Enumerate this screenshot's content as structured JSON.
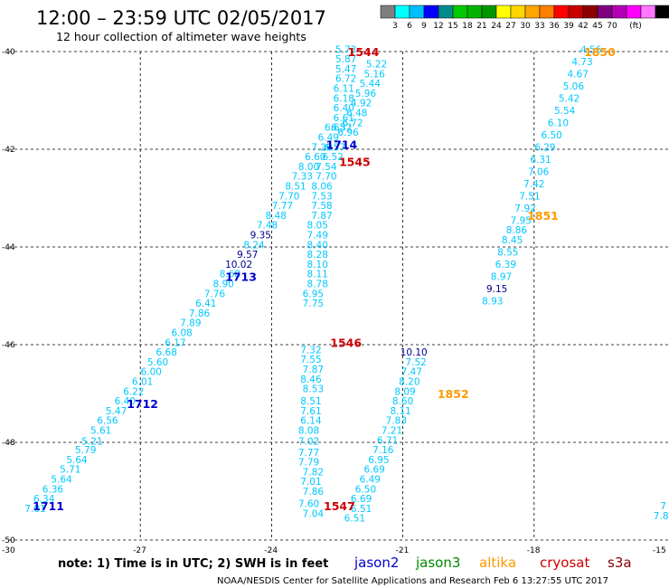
{
  "header": {
    "title": "12:00 – 23:59 UTC 02/05/2017",
    "subtitle": "12 hour collection of altimeter wave heights"
  },
  "legend_scale": {
    "colors": [
      "#7f7f7f",
      "#00ffff",
      "#00bfff",
      "#0000ff",
      "#008b8b",
      "#00c800",
      "#00b400",
      "#009600",
      "#ffff00",
      "#ffd700",
      "#ffa500",
      "#ff7f00",
      "#ff0000",
      "#c80000",
      "#8b0000",
      "#800080",
      "#b400b4",
      "#ff00ff",
      "#ff77ff",
      "#000000"
    ],
    "labels": [
      "3",
      "6",
      "9",
      "12",
      "15",
      "18",
      "21",
      "24",
      "27",
      "30",
      "33",
      "36",
      "39",
      "42",
      "45",
      "70",
      "(ft)"
    ]
  },
  "footer": {
    "note": "note:  1) Time is in UTC;  2) SWH is in feet",
    "satellites": [
      {
        "name": "jason2",
        "color": "#0000cc"
      },
      {
        "name": "jason3",
        "color": "#008800"
      },
      {
        "name": "altika",
        "color": "#ff9900"
      },
      {
        "name": "cryosat",
        "color": "#cc0000"
      },
      {
        "name": "s3a",
        "color": "#880000"
      }
    ],
    "credit": "NOAA/NESDIS Center for Satellite Applications and Research     Feb  6 13:27:55 UTC 2017"
  },
  "chart_data": {
    "type": "scatter",
    "xlim": [
      -30,
      -15
    ],
    "ylim": [
      -50,
      -40
    ],
    "x_ticks": [
      -30,
      -27,
      -24,
      -21,
      -18,
      -15
    ],
    "y_ticks": [
      -40,
      -42,
      -44,
      -46,
      -48,
      -50
    ],
    "x_tick_labels": [
      "-30",
      "-27",
      "-24",
      "-21",
      "-18",
      "-15"
    ],
    "y_tick_labels": [
      "-40",
      "-42",
      "-44",
      "-46",
      "-48",
      "-50"
    ],
    "grid": true,
    "grid_style": "dashed",
    "value_color": "#00c8ff",
    "tracks": [
      {
        "satellite": "jason2",
        "time_label": "1711",
        "time_pos": [
          -29.1,
          -49.3
        ],
        "time_color": "#0000cc",
        "points": [
          [
            "7.01",
            -29.4,
            -49.35
          ],
          [
            "6.34",
            -29.2,
            -49.15
          ],
          [
            "6.36",
            -29.0,
            -48.95
          ],
          [
            "5.64",
            -28.8,
            -48.75
          ],
          [
            "5.71",
            -28.6,
            -48.55
          ],
          [
            "5.64",
            -28.45,
            -48.35
          ],
          [
            "5.79",
            -28.25,
            -48.15
          ],
          [
            "5.21",
            -28.1,
            -47.97
          ],
          [
            "5.61",
            -27.9,
            -47.75
          ],
          [
            "6.56",
            -27.75,
            -47.55
          ],
          [
            "5.47",
            -27.55,
            -47.35
          ],
          [
            "6.40",
            -27.35,
            -47.15
          ],
          [
            "6.22",
            -27.15,
            -46.95
          ],
          [
            "6.01",
            -26.95,
            -46.75
          ],
          [
            "6.00",
            -26.75,
            -46.55
          ],
          [
            "5.60",
            -26.6,
            -46.35
          ],
          [
            "6.68",
            -26.4,
            -46.15
          ],
          [
            "6.17",
            -26.2,
            -45.95
          ],
          [
            "6.08",
            -26.05,
            -45.75
          ],
          [
            "7.89",
            -25.85,
            -45.55
          ],
          [
            "7.86",
            -25.65,
            -45.35
          ],
          [
            "6.41",
            -25.5,
            -45.15
          ],
          [
            "7.76",
            -25.3,
            -44.95
          ],
          [
            "8.90",
            -25.1,
            -44.75
          ],
          [
            "8.68",
            -24.95,
            -44.55
          ],
          [
            "10.02",
            -24.75,
            -44.35
          ],
          [
            "9.57",
            -24.55,
            -44.15
          ],
          [
            "8.24",
            -24.4,
            -43.95
          ],
          [
            "9.35",
            -24.25,
            -43.75
          ],
          [
            "7.48",
            -24.1,
            -43.55
          ],
          [
            "8.48",
            -23.9,
            -43.35
          ],
          [
            "7.77",
            -23.75,
            -43.15
          ],
          [
            "7.70",
            -23.6,
            -42.95
          ],
          [
            "8.51",
            -23.45,
            -42.75
          ],
          [
            "7.33",
            -23.3,
            -42.55
          ],
          [
            "8.00",
            -23.15,
            -42.35
          ],
          [
            "6.60",
            -23.0,
            -42.15
          ],
          [
            "7.29",
            -22.85,
            -41.95
          ],
          [
            "6.49",
            -22.7,
            -41.75
          ],
          [
            "6.65",
            -22.55,
            -41.55
          ]
        ]
      },
      {
        "satellite": "jason2",
        "time_label": "1712",
        "time_pos": [
          -26.95,
          -47.2
        ],
        "time_color": "#0000cc",
        "points": []
      },
      {
        "satellite": "jason2",
        "time_label": "1713",
        "time_pos": [
          -24.7,
          -44.6
        ],
        "time_color": "#0000cc",
        "points": []
      },
      {
        "satellite": "jason2",
        "time_label": "1714",
        "time_pos": [
          -22.4,
          -41.9
        ],
        "time_color": "#0000cc",
        "points": [
          [
            "5.73",
            -22.3,
            -39.95
          ],
          [
            "5.87",
            -22.3,
            -40.15
          ],
          [
            "5.47",
            -22.3,
            -40.35
          ],
          [
            "6.72",
            -22.3,
            -40.55
          ],
          [
            "6.11",
            -22.35,
            -40.75
          ],
          [
            "6.18",
            -22.35,
            -40.95
          ],
          [
            "6.40",
            -22.35,
            -41.15
          ],
          [
            "6.61",
            -22.35,
            -41.35
          ],
          [
            "6.32",
            -22.4,
            -41.55
          ],
          [
            "6.57",
            -22.55,
            -41.95
          ],
          [
            "6.52",
            -22.6,
            -42.15
          ]
        ]
      },
      {
        "satellite": "cryosat",
        "time_label": "1544",
        "time_pos": [
          -21.9,
          -40.0
        ],
        "time_color": "#cc0000",
        "points": [
          [
            "5.22",
            -21.6,
            -40.25
          ],
          [
            "5.16",
            -21.65,
            -40.45
          ],
          [
            "5.44",
            -21.75,
            -40.65
          ],
          [
            "5.96",
            -21.85,
            -40.85
          ],
          [
            "4.92",
            -21.95,
            -41.05
          ],
          [
            "6.48",
            -22.05,
            -41.25
          ],
          [
            "6.72",
            -22.15,
            -41.45
          ],
          [
            "6.96",
            -22.25,
            -41.65
          ]
        ]
      },
      {
        "satellite": "cryosat",
        "time_label": "1545",
        "time_pos": [
          -22.1,
          -42.25
        ],
        "time_color": "#cc0000",
        "points": [
          [
            "7.54",
            -22.75,
            -42.35
          ],
          [
            "7.70",
            -22.75,
            -42.55
          ],
          [
            "8.06",
            -22.85,
            -42.75
          ],
          [
            "7.53",
            -22.85,
            -42.95
          ],
          [
            "7.58",
            -22.85,
            -43.15
          ],
          [
            "7.87",
            -22.85,
            -43.35
          ],
          [
            "8.05",
            -22.95,
            -43.55
          ],
          [
            "7.49",
            -22.95,
            -43.75
          ],
          [
            "8.40",
            -22.95,
            -43.95
          ],
          [
            "8.28",
            -22.95,
            -44.15
          ],
          [
            "8.10",
            -22.95,
            -44.35
          ],
          [
            "8.11",
            -22.95,
            -44.55
          ],
          [
            "8.78",
            -22.95,
            -44.75
          ],
          [
            "6.95",
            -23.05,
            -44.95
          ],
          [
            "7.75",
            -23.05,
            -45.15
          ]
        ]
      },
      {
        "satellite": "cryosat",
        "time_label": "1546",
        "time_pos": [
          -22.3,
          -45.95
        ],
        "time_color": "#cc0000",
        "points": [
          [
            "7.32",
            -23.1,
            -46.1
          ],
          [
            "7.55",
            -23.1,
            -46.3
          ],
          [
            "7.87",
            -23.05,
            -46.5
          ],
          [
            "8.46",
            -23.1,
            -46.7
          ],
          [
            "8.53",
            -23.05,
            -46.9
          ],
          [
            "8.51",
            -23.1,
            -47.15
          ],
          [
            "7.61",
            -23.1,
            -47.35
          ],
          [
            "6.14",
            -23.1,
            -47.55
          ],
          [
            "8.08",
            -23.15,
            -47.75
          ],
          [
            "7.02",
            -23.15,
            -47.97
          ],
          [
            "7.77",
            -23.15,
            -48.2
          ],
          [
            "7.79",
            -23.15,
            -48.4
          ],
          [
            "7.82",
            -23.05,
            -48.6
          ],
          [
            "7.01",
            -23.1,
            -48.8
          ],
          [
            "7.86",
            -23.05,
            -49.0
          ],
          [
            "7.60",
            -23.15,
            -49.25
          ],
          [
            "7.04",
            -23.05,
            -49.45
          ]
        ]
      },
      {
        "satellite": "cryosat",
        "time_label": "1547",
        "time_pos": [
          -22.45,
          -49.3
        ],
        "time_color": "#cc0000",
        "points": [
          [
            "6.51",
            -21.95,
            -49.35
          ],
          [
            "6.51",
            -22.1,
            -49.55
          ],
          [
            "6.69",
            -21.95,
            -49.15
          ],
          [
            "6.50",
            -21.85,
            -48.95
          ],
          [
            "6.49",
            -21.75,
            -48.75
          ],
          [
            "6.69",
            -21.65,
            -48.55
          ],
          [
            "6.95",
            -21.55,
            -48.35
          ],
          [
            "7.16",
            -21.45,
            -48.15
          ],
          [
            "6.71",
            -21.35,
            -47.95
          ],
          [
            "7.21",
            -21.25,
            -47.75
          ],
          [
            "7.83",
            -21.15,
            -47.55
          ],
          [
            "8.11",
            -21.05,
            -47.35
          ],
          [
            "8.60",
            -21.0,
            -47.15
          ],
          [
            "8.09",
            -20.95,
            -46.95
          ],
          [
            "8.20",
            -20.85,
            -46.75
          ],
          [
            "7.47",
            -20.8,
            -46.55
          ],
          [
            "7.52",
            -20.7,
            -46.35
          ],
          [
            "10.10",
            -20.75,
            -46.15
          ]
        ]
      },
      {
        "satellite": "altika",
        "time_label": "1850",
        "time_pos": [
          -16.5,
          -40.0
        ],
        "time_color": "#ff9900",
        "points": [
          [
            "4.56",
            -16.7,
            -39.95
          ],
          [
            "4.73",
            -16.9,
            -40.2
          ],
          [
            "4.67",
            -17.0,
            -40.45
          ],
          [
            "5.06",
            -17.1,
            -40.7
          ],
          [
            "5.42",
            -17.2,
            -40.95
          ],
          [
            "5.54",
            -17.3,
            -41.2
          ],
          [
            "6.10",
            -17.45,
            -41.45
          ],
          [
            "6.50",
            -17.6,
            -41.7
          ],
          [
            "6.29",
            -17.75,
            -41.95
          ],
          [
            "6.31",
            -17.85,
            -42.2
          ],
          [
            "7.06",
            -17.9,
            -42.45
          ],
          [
            "7.42",
            -18.0,
            -42.7
          ],
          [
            "7.51",
            -18.1,
            -42.95
          ],
          [
            "7.92",
            -18.2,
            -43.2
          ],
          [
            "7.95",
            -18.3,
            -43.45
          ],
          [
            "8.86",
            -18.4,
            -43.65
          ],
          [
            "8.45",
            -18.5,
            -43.85
          ],
          [
            "8.55",
            -18.6,
            -44.1
          ],
          [
            "6.39",
            -18.65,
            -44.35
          ],
          [
            "8.97",
            -18.75,
            -44.6
          ],
          [
            "9.15",
            -18.85,
            -44.85
          ],
          [
            "8.93",
            -18.95,
            -45.1
          ]
        ]
      },
      {
        "satellite": "altika",
        "time_label": "1851",
        "time_pos": [
          -17.8,
          -43.35
        ],
        "time_color": "#ff9900",
        "points": []
      },
      {
        "satellite": "altika",
        "time_label": "1852",
        "time_pos": [
          -19.85,
          -47.0
        ],
        "time_color": "#ff9900",
        "points": []
      },
      {
        "satellite": "s3a",
        "time_label": "",
        "time_pos": null,
        "time_color": "#880000",
        "points": [
          [
            "7.8",
            -15.1,
            -49.5
          ],
          [
            "7",
            -15.05,
            -49.3
          ]
        ]
      }
    ],
    "dark_values": [
      [
        "10.02",
        -24.75,
        -44.35
      ],
      [
        "9.35",
        -24.25,
        -43.75
      ],
      [
        "9.57",
        -24.55,
        -44.15
      ],
      [
        "9.15",
        -18.85,
        -44.85
      ],
      [
        "10.10",
        -20.75,
        -46.15
      ]
    ]
  }
}
